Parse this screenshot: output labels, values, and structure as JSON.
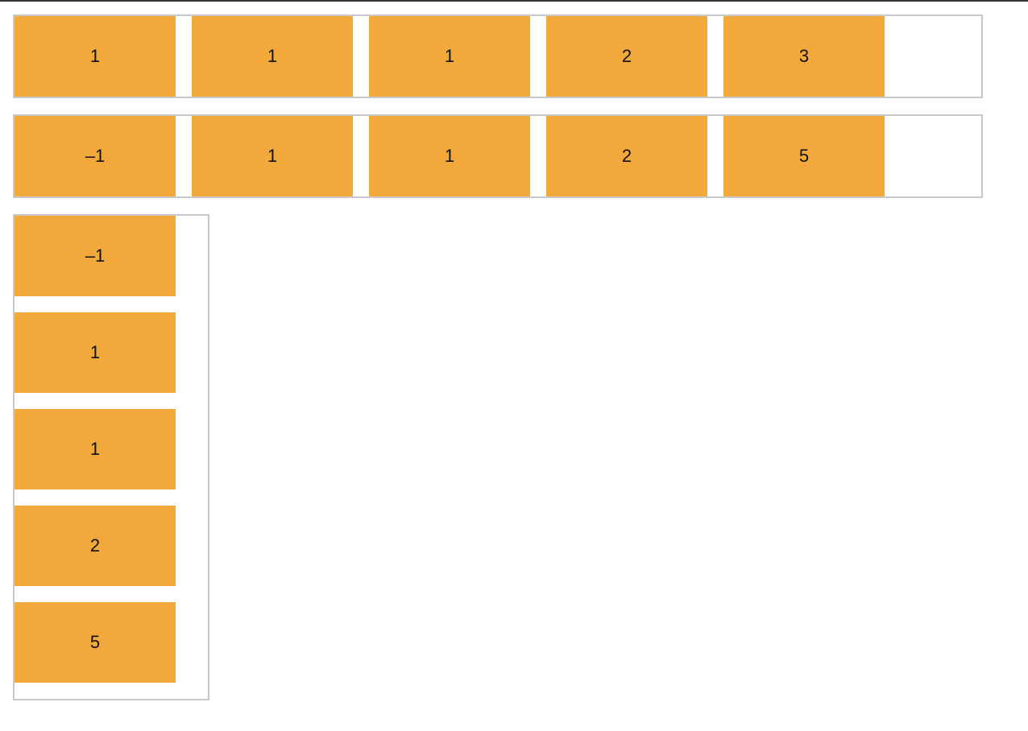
{
  "containers": {
    "row_a": {
      "items": [
        "1",
        "1",
        "1",
        "2",
        "3"
      ]
    },
    "row_b": {
      "items": [
        "–1",
        "1",
        "1",
        "2",
        "5"
      ]
    },
    "column_c": {
      "items": [
        "–1",
        "1",
        "1",
        "2",
        "5"
      ]
    }
  },
  "colors": {
    "item_fill": "#f3a83b",
    "container_border": "#c8c8c8",
    "text": "#111111"
  }
}
